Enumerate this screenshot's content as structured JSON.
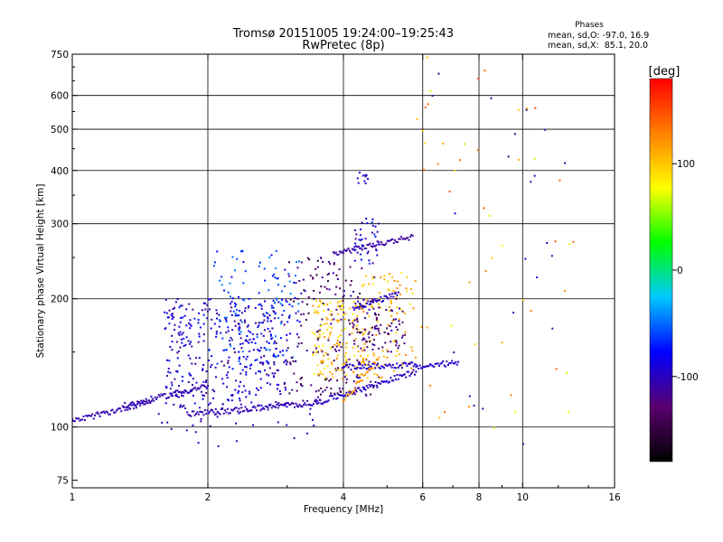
{
  "chart_data": {
    "type": "scatter",
    "title": "Tromsø 20151005 19:24:00–19:25:43",
    "subtitle": "RwPretec (8p)",
    "xlabel": "Frequency [MHz]",
    "ylabel": "Stationary phase Virtual Height [km]",
    "x_scale": "log",
    "y_scale": "log",
    "xlim": [
      1,
      16
    ],
    "ylim": [
      72,
      750
    ],
    "x_ticks": [
      1,
      2,
      4,
      6,
      8,
      10,
      16
    ],
    "y_ticks": [
      75,
      100,
      200,
      300,
      400,
      500,
      600,
      750
    ],
    "grid": true,
    "info_box": {
      "title": "Phases",
      "line1": "mean, sd,O: -97.0, 16.9",
      "line2": "mean, sd,X:  85.1, 20.0"
    },
    "colorbar": {
      "label": "[deg]",
      "vmin": -180,
      "vmax": 180,
      "ticks": [
        100,
        0,
        -100
      ],
      "colors": [
        "#000000",
        "#5a006e",
        "#0000ff",
        "#00c8ff",
        "#00ff00",
        "#ffff00",
        "#ff8000",
        "#ff0000"
      ]
    },
    "series": [
      {
        "traces": [
          {
            "f0": 1.0,
            "f1": 1.5,
            "h0": 103,
            "h1": 115,
            "p": -105
          },
          {
            "f0": 1.3,
            "f1": 2.0,
            "h0": 112,
            "h1": 125,
            "p": -105
          },
          {
            "f0": 1.8,
            "f1": 3.5,
            "h0": 107,
            "h1": 114,
            "p": -105
          },
          {
            "f0": 3.5,
            "f1": 5.8,
            "h0": 114,
            "h1": 135,
            "p": -100
          },
          {
            "f0": 4.0,
            "f1": 5.8,
            "h0": 138,
            "h1": 140,
            "p": -95
          },
          {
            "f0": 5.8,
            "f1": 7.2,
            "h0": 138,
            "h1": 142,
            "p": -95
          },
          {
            "f0": 4.2,
            "f1": 5.3,
            "h0": 190,
            "h1": 205,
            "p": -100
          },
          {
            "f0": 4.0,
            "f1": 4.8,
            "h0": 115,
            "h1": 145,
            "p": 120
          },
          {
            "f0": 3.8,
            "f1": 5.7,
            "h0": 255,
            "h1": 280,
            "p": -110
          }
        ]
      },
      {
        "clusters": [
          {
            "f0": 1.6,
            "f1": 3.0,
            "h0": 110,
            "h1": 200,
            "p0": -120,
            "p1": -70,
            "n": 380
          },
          {
            "f0": 2.0,
            "f1": 3.2,
            "h0": 140,
            "h1": 260,
            "p0": -85,
            "p1": -40,
            "n": 140
          },
          {
            "f0": 3.0,
            "f1": 4.8,
            "h0": 115,
            "h1": 250,
            "p0": -160,
            "p1": -100,
            "n": 220
          },
          {
            "f0": 3.4,
            "f1": 4.4,
            "h0": 130,
            "h1": 200,
            "p0": 75,
            "p1": 125,
            "n": 140
          },
          {
            "f0": 4.4,
            "f1": 5.8,
            "h0": 130,
            "h1": 230,
            "p0": 85,
            "p1": 130,
            "n": 110
          },
          {
            "f0": 4.2,
            "f1": 5.5,
            "h0": 150,
            "h1": 200,
            "p0": -150,
            "p1": -100,
            "n": 70
          },
          {
            "f0": 4.2,
            "f1": 4.8,
            "h0": 240,
            "h1": 310,
            "p0": -120,
            "p1": -60,
            "n": 40
          },
          {
            "f0": 4.3,
            "f1": 4.6,
            "h0": 370,
            "h1": 400,
            "p0": -110,
            "p1": -90,
            "n": 10
          },
          {
            "f0": 5.8,
            "f1": 13.5,
            "h0": 95,
            "h1": 740,
            "p0": 60,
            "p1": 150,
            "n": 50
          },
          {
            "f0": 5.8,
            "f1": 13.5,
            "h0": 90,
            "h1": 680,
            "p0": -115,
            "p1": -95,
            "n": 22
          },
          {
            "f0": 1.5,
            "f1": 3.5,
            "h0": 90,
            "h1": 115,
            "p0": -110,
            "p1": -100,
            "n": 30
          }
        ]
      }
    ]
  }
}
